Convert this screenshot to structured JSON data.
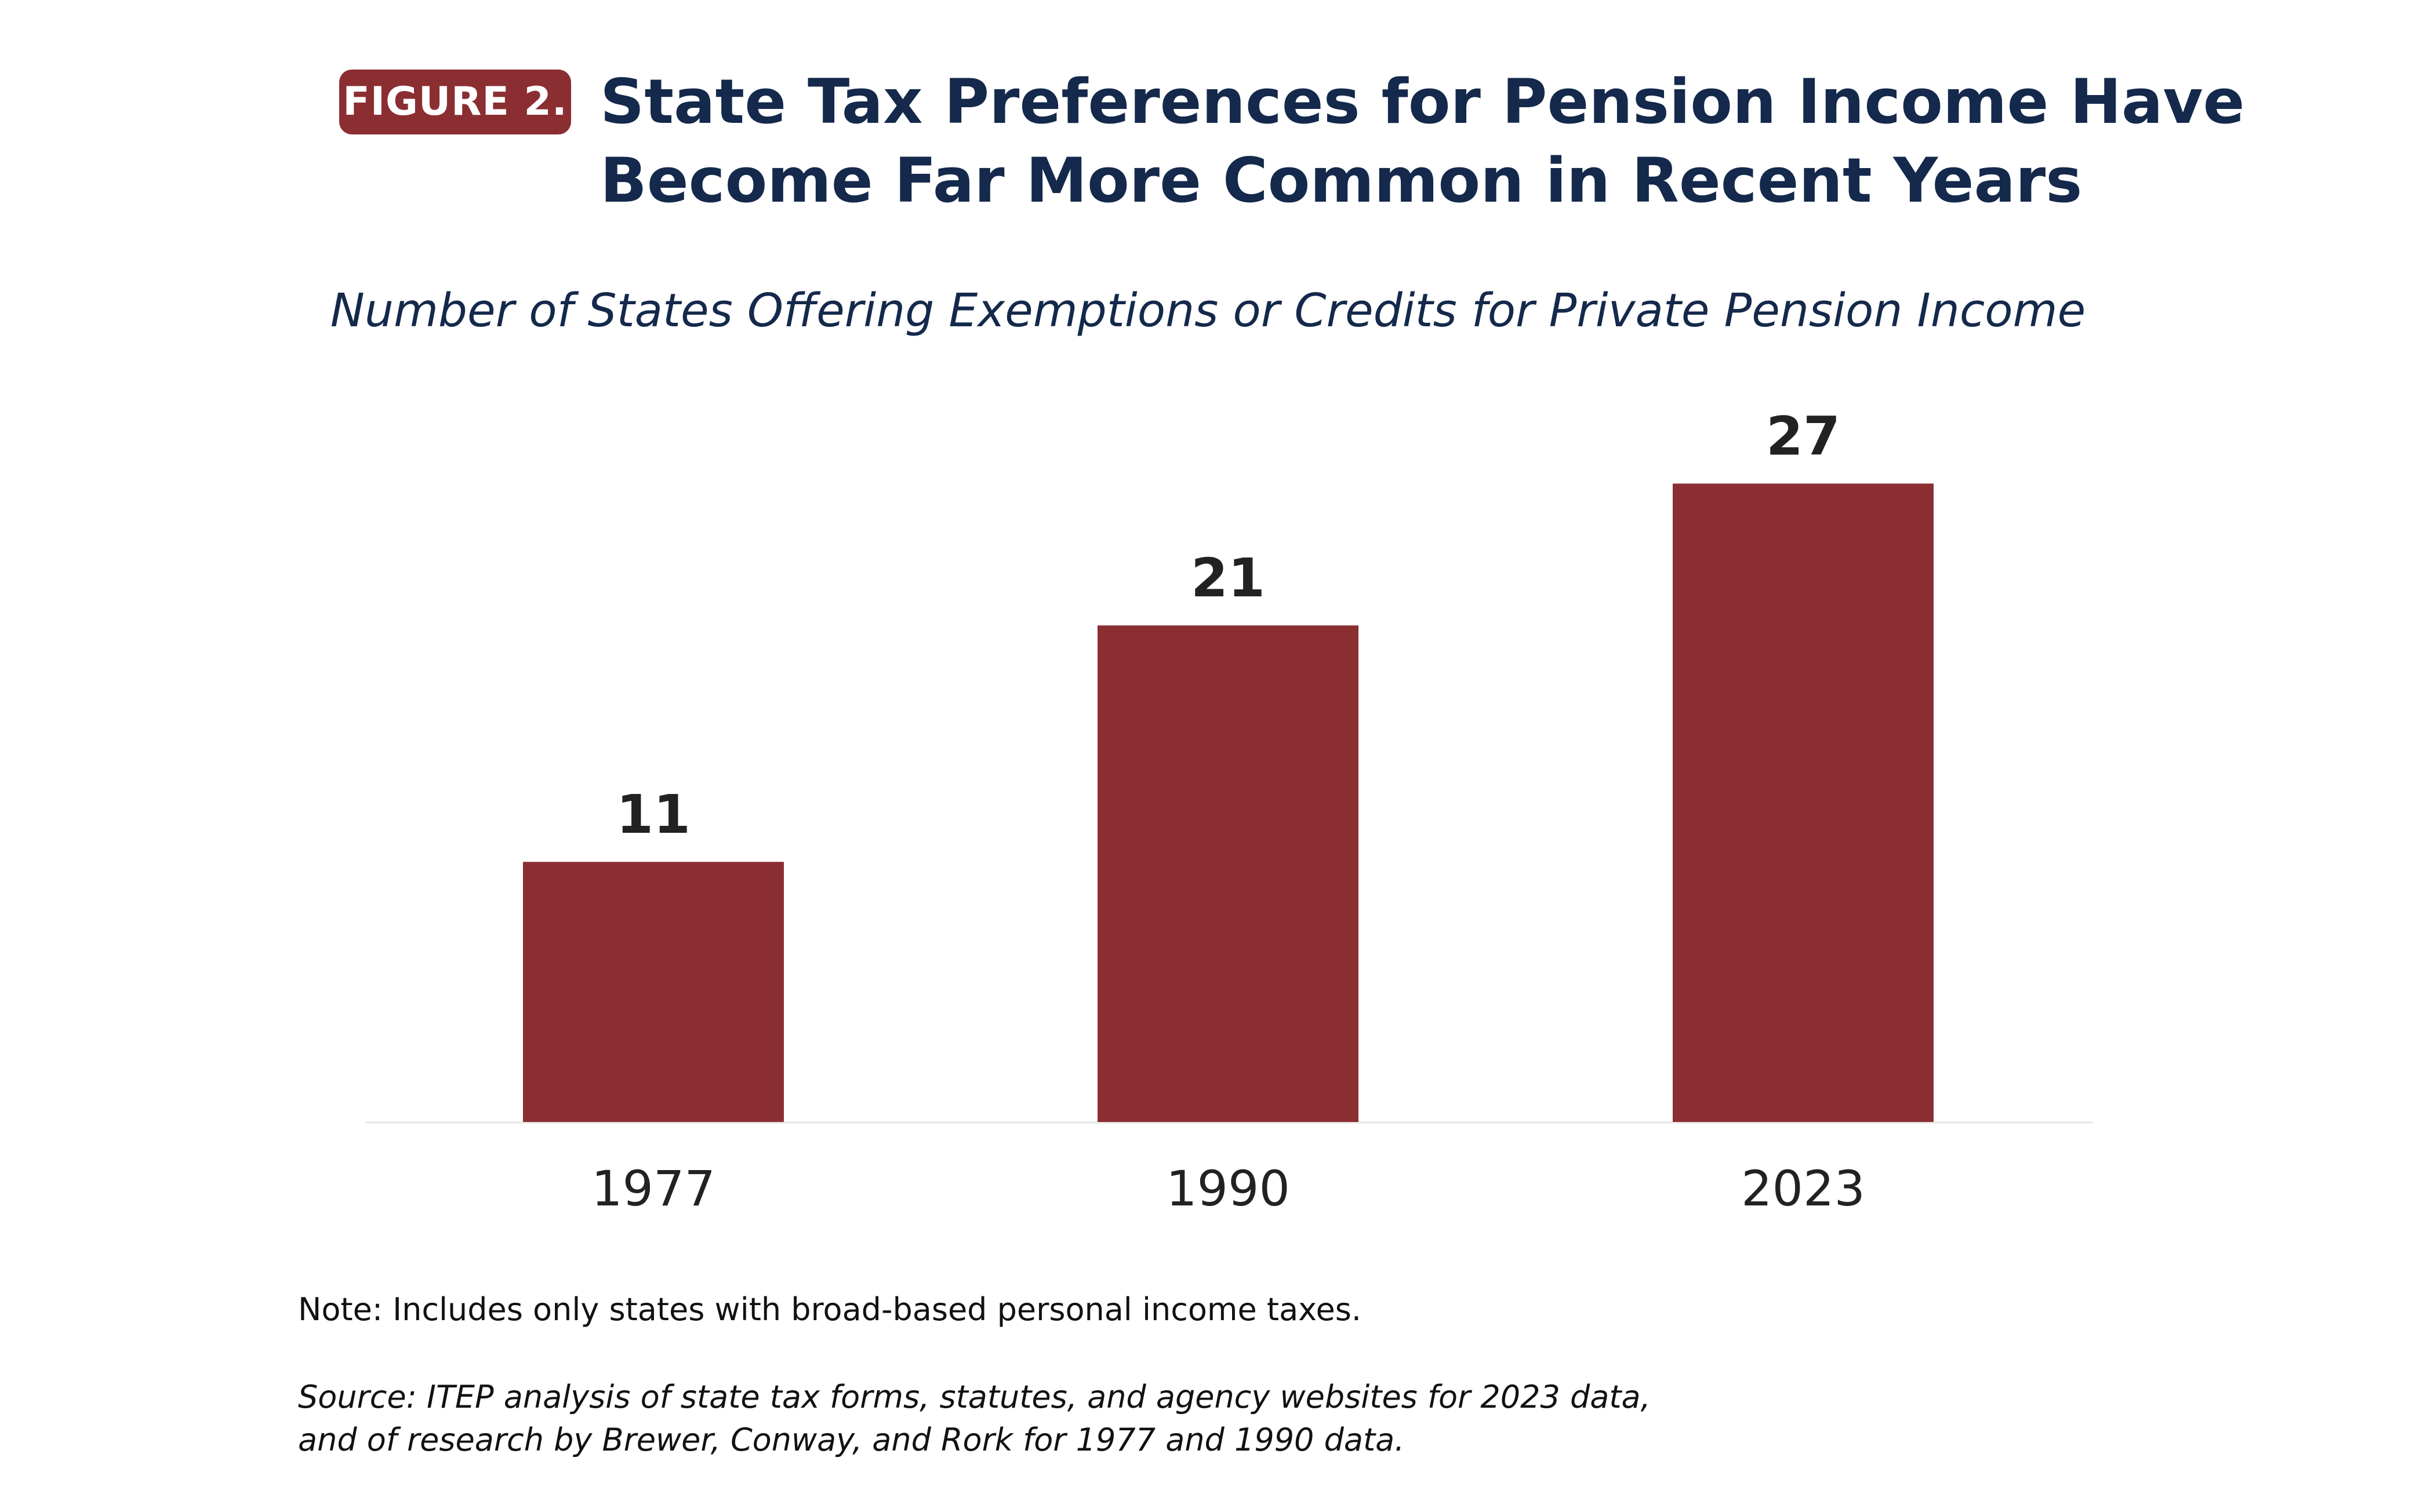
{
  "figure": {
    "badge": "FIGURE 2.",
    "title_lines": [
      "State Tax Preferences for Pension Income Have",
      "Become Far More Common in Recent Years"
    ],
    "subtitle": "Number of States Offering Exemptions or Credits for Private Pension Income"
  },
  "chart_data": {
    "type": "bar",
    "title": "State Tax Preferences for Pension Income Have Become Far More Common in Recent Years",
    "subtitle": "Number of States Offering Exemptions or Credits for Private Pension Income",
    "categories": [
      "1977",
      "1990",
      "2023"
    ],
    "values": [
      11,
      21,
      27
    ],
    "data_labels": [
      "11",
      "21",
      "27"
    ],
    "xlabel": "",
    "ylabel": "",
    "ylim": [
      0,
      30
    ],
    "grid": false,
    "legend": "none",
    "bar_color": "#8b2e32"
  },
  "footer": {
    "note": "Note: Includes only states with broad-based personal income taxes.",
    "source_lines": [
      "Source: ITEP analysis of state tax forms, statutes, and agency websites for 2023 data,",
      "and of research by Brewer, Conway, and Rork for 1977 and 1990 data."
    ]
  },
  "colors": {
    "accent": "#8b2e32",
    "title_text": "#14294b",
    "label_text": "#222222",
    "baseline": "#e6e6e6"
  }
}
